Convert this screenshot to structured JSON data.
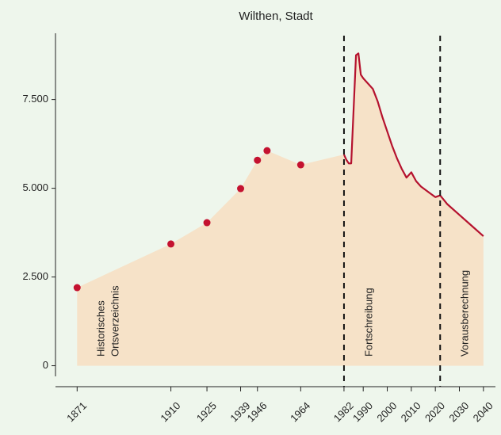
{
  "chart_data": {
    "type": "area",
    "title": "Wilthen, Stadt",
    "xlim": [
      1862,
      2045
    ],
    "xticks": [
      1871,
      1910,
      1925,
      1939,
      1946,
      1964,
      1982,
      1990,
      2000,
      2010,
      2020,
      2030,
      2040
    ],
    "ylim": [
      -300,
      9300
    ],
    "yticks": [
      0,
      {
        "value": 2500,
        "label": "2.500"
      },
      {
        "value": 5000,
        "label": "5.000"
      },
      {
        "value": 7500,
        "label": "7.500"
      }
    ],
    "fill_color": "#f6e2c8",
    "line_color": "#b5122e",
    "point_color": "#c41230",
    "series": [
      {
        "x": [
          1871,
          1910,
          1925,
          1939,
          1946,
          1950,
          1964
        ],
        "values": [
          2200,
          3430,
          4030,
          4990,
          5790,
          6060,
          5660
        ]
      },
      {
        "x": [
          1982,
          1983,
          1984,
          1985,
          1987,
          1988,
          1989,
          1990,
          1992,
          1994,
          1996,
          1998,
          2000,
          2002,
          2004,
          2006,
          2008,
          2010,
          2012,
          2014,
          2016,
          2018,
          2020,
          2022
        ],
        "values": [
          5950,
          5800,
          5700,
          5700,
          8750,
          8800,
          8200,
          8100,
          7950,
          7800,
          7450,
          7000,
          6600,
          6200,
          5850,
          5550,
          5300,
          5450,
          5200,
          5050,
          4950,
          4850,
          4750,
          4800
        ]
      },
      {
        "x": [
          2022,
          2025,
          2030,
          2035,
          2040
        ],
        "values": [
          4800,
          4550,
          4250,
          3950,
          3650
        ]
      }
    ],
    "vlines": [
      1982,
      2022
    ],
    "annotations": [
      {
        "lines": [
          "Historisches",
          "Ortsverzeichnis"
        ]
      },
      {
        "lines": [
          "Fortschreibung"
        ]
      },
      {
        "lines": [
          "Vorausberechnung"
        ]
      }
    ]
  }
}
